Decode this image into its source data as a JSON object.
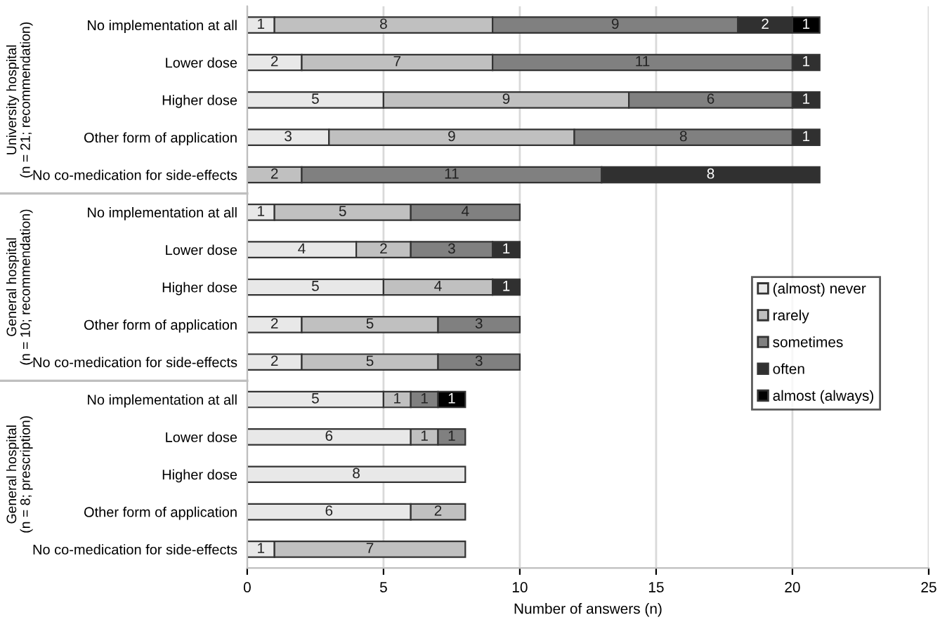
{
  "chart_data": {
    "type": "bar",
    "orientation": "horizontal",
    "stacked": true,
    "categories": [
      "No implementation at all",
      "Lower dose",
      "Higher dose",
      "Other form of application",
      "No co-medication for side-effects",
      "No implementation at all",
      "Lower dose",
      "Higher dose",
      "Other form of application",
      "No co-medication for side-effects",
      "No implementation at all",
      "Lower dose",
      "Higher dose",
      "Other form of application",
      "No co-medication for side-effects"
    ],
    "series": [
      {
        "name": "(almost) never",
        "color": "#e8e8e8",
        "values": [
          1,
          2,
          5,
          3,
          null,
          1,
          4,
          5,
          2,
          2,
          5,
          6,
          8,
          6,
          1
        ]
      },
      {
        "name": "rarely",
        "color": "#c0c0c0",
        "values": [
          8,
          7,
          9,
          9,
          2,
          5,
          2,
          4,
          5,
          5,
          1,
          1,
          null,
          2,
          7
        ]
      },
      {
        "name": "sometimes",
        "color": "#808080",
        "values": [
          9,
          11,
          6,
          8,
          11,
          4,
          3,
          null,
          3,
          3,
          1,
          1,
          null,
          null,
          null
        ]
      },
      {
        "name": "often",
        "color": "#303030",
        "values": [
          2,
          1,
          1,
          1,
          8,
          null,
          1,
          1,
          null,
          null,
          null,
          null,
          null,
          null,
          null
        ]
      },
      {
        "name": "almost (always)",
        "color": "#000000",
        "values": [
          1,
          null,
          null,
          null,
          null,
          null,
          null,
          null,
          null,
          null,
          1,
          null,
          null,
          null,
          null
        ]
      }
    ],
    "xlabel": "Number of answers (n)",
    "xlim": [
      0,
      25
    ],
    "xticks": [
      0,
      5,
      10,
      15,
      20,
      25
    ],
    "grid": "x",
    "legend": "right",
    "data_labels": true,
    "annotations": [
      "University hospital\n(n = 21; recommendation)",
      "General hospital\n(n = 10; recommendation)",
      "General hospital\n(n = 8; prescription)"
    ]
  }
}
